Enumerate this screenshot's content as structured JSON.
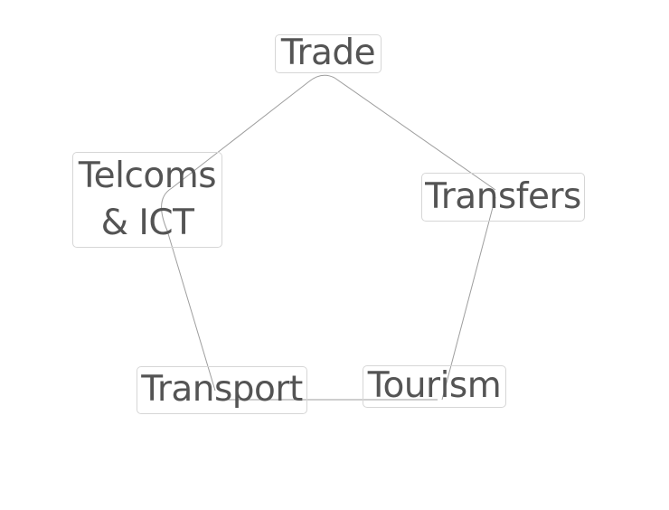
{
  "diagram": {
    "nodes": {
      "trade": "Trade",
      "transfers": "Transfers",
      "tourism": "Tourism",
      "transport": "Transport",
      "telcoms": "Telcoms\n& ICT"
    },
    "cycle": [
      "trade",
      "transfers",
      "tourism",
      "transport",
      "telcoms"
    ],
    "colors": {
      "line": "#9e9e9e",
      "text": "#545454",
      "box_border": "#d6d6d6"
    }
  }
}
